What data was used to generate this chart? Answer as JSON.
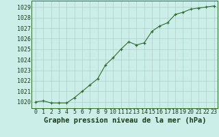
{
  "x": [
    0,
    1,
    2,
    3,
    4,
    5,
    6,
    7,
    8,
    9,
    10,
    11,
    12,
    13,
    14,
    15,
    16,
    17,
    18,
    19,
    20,
    21,
    22,
    23
  ],
  "y": [
    1020.0,
    1020.1,
    1019.9,
    1019.9,
    1019.9,
    1020.4,
    1021.0,
    1021.6,
    1022.2,
    1023.5,
    1024.2,
    1025.0,
    1025.7,
    1025.4,
    1025.6,
    1026.7,
    1027.2,
    1027.5,
    1028.3,
    1028.5,
    1028.8,
    1028.9,
    1029.0,
    1029.1
  ],
  "line_color": "#2d6a2d",
  "marker": "+",
  "marker_color": "#2d6a2d",
  "bg_color": "#cceee8",
  "grid_color": "#b0cccc",
  "xlabel": "Graphe pression niveau de la mer (hPa)",
  "xlabel_color": "#1a3a1a",
  "xlabel_fontsize": 7.5,
  "ylabel_ticks": [
    1020,
    1021,
    1022,
    1023,
    1024,
    1025,
    1026,
    1027,
    1028,
    1029
  ],
  "ylim": [
    1019.4,
    1029.6
  ],
  "xlim": [
    -0.5,
    23.5
  ],
  "tick_fontsize": 6.0,
  "tick_color": "#1a3a1a",
  "axis_color": "#2d6a2d"
}
